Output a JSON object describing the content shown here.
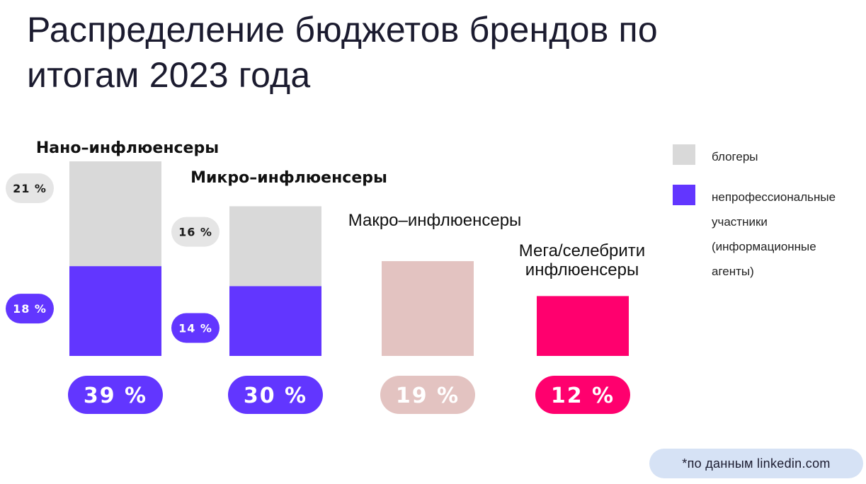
{
  "title": {
    "line1": "Распределение бюджетов брендов по",
    "line2": "итогам 2023 года"
  },
  "legend": {
    "items": [
      {
        "label_lines": [
          "блогеры"
        ],
        "color": "#d9d9d9"
      },
      {
        "label_lines": [
          "непрофессиональные",
          "участники",
          "(информационные",
          "агенты)"
        ],
        "color": "#6236ff"
      }
    ]
  },
  "source_note": "*по данным linkedin.com",
  "colors": {
    "bloggers": "#d9d9d9",
    "nonprofessional": "#6236ff",
    "macro": "#e3c3c1",
    "mega": "#ff006e",
    "total_text": "#ffffff",
    "segment_text": "#ffffff",
    "segment_text_light": "#1a1a1a"
  },
  "chart_data": {
    "type": "bar",
    "stacked": true,
    "unit": "%",
    "categories": [
      {
        "label_lines": [
          "Нано–инфлюенсеры"
        ],
        "bold": true,
        "total": 39,
        "total_label": "39 %",
        "segments": [
          {
            "name": "блогеры",
            "value": 21,
            "label": "21 %"
          },
          {
            "name": "непрофессиональные участники (информационные агенты)",
            "value": 18,
            "label": "18 %"
          }
        ]
      },
      {
        "label_lines": [
          "Микро–инфлюенсеры"
        ],
        "bold": true,
        "total": 30,
        "total_label": "30 %",
        "segments": [
          {
            "name": "блогеры",
            "value": 16,
            "label": "16 %"
          },
          {
            "name": "непрофессиональные участники (информационные агенты)",
            "value": 14,
            "label": "14 %"
          }
        ]
      },
      {
        "label_lines": [
          "Макро–инфлюенсеры"
        ],
        "bold": false,
        "total": 19,
        "total_label": "19 %",
        "segments": []
      },
      {
        "label_lines": [
          "Мега/селебрити",
          "инфлюенсеры"
        ],
        "bold": false,
        "total": 12,
        "total_label": "12 %",
        "segments": []
      }
    ],
    "series": [
      {
        "name": "блогеры"
      },
      {
        "name": "непрофессиональные участники (информационные агенты)"
      }
    ],
    "legend_position": "right",
    "grid": false,
    "axes_visible": false
  }
}
